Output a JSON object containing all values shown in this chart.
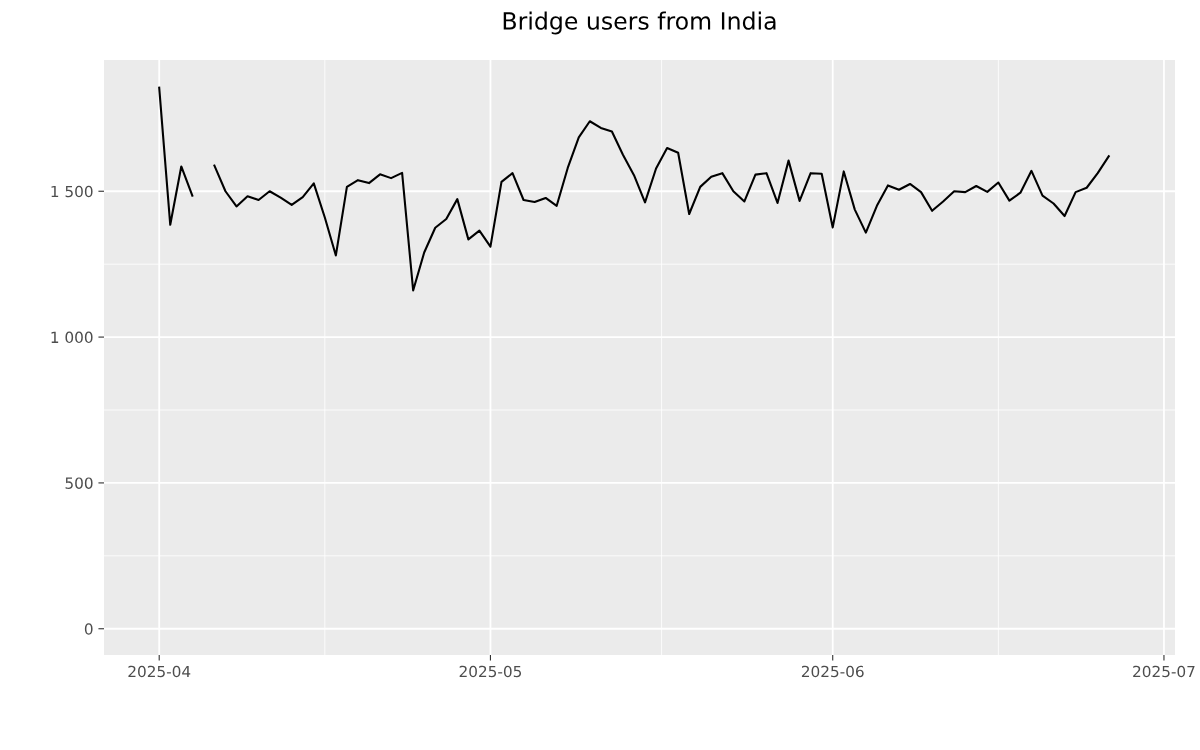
{
  "chart_data": {
    "type": "line",
    "title": "Bridge users from India",
    "x": [
      "2025-04-01",
      "2025-04-02",
      "2025-04-03",
      "2025-04-04",
      "2025-04-05",
      "2025-04-06",
      "2025-04-07",
      "2025-04-08",
      "2025-04-09",
      "2025-04-10",
      "2025-04-11",
      "2025-04-12",
      "2025-04-13",
      "2025-04-14",
      "2025-04-15",
      "2025-04-16",
      "2025-04-17",
      "2025-04-18",
      "2025-04-19",
      "2025-04-20",
      "2025-04-21",
      "2025-04-22",
      "2025-04-23",
      "2025-04-24",
      "2025-04-25",
      "2025-04-26",
      "2025-04-27",
      "2025-04-28",
      "2025-04-29",
      "2025-04-30",
      "2025-05-01",
      "2025-05-02",
      "2025-05-03",
      "2025-05-04",
      "2025-05-05",
      "2025-05-06",
      "2025-05-07",
      "2025-05-08",
      "2025-05-09",
      "2025-05-10",
      "2025-05-11",
      "2025-05-12",
      "2025-05-13",
      "2025-05-14",
      "2025-05-15",
      "2025-05-16",
      "2025-05-17",
      "2025-05-18",
      "2025-05-19",
      "2025-05-20",
      "2025-05-21",
      "2025-05-22",
      "2025-05-23",
      "2025-05-24",
      "2025-05-25",
      "2025-05-26",
      "2025-05-27",
      "2025-05-28",
      "2025-05-29",
      "2025-05-30",
      "2025-05-31",
      "2025-06-01",
      "2025-06-02",
      "2025-06-03",
      "2025-06-04",
      "2025-06-05",
      "2025-06-06",
      "2025-06-07",
      "2025-06-08",
      "2025-06-09",
      "2025-06-10",
      "2025-06-11",
      "2025-06-12",
      "2025-06-13",
      "2025-06-14",
      "2025-06-15",
      "2025-06-16",
      "2025-06-17",
      "2025-06-18",
      "2025-06-19",
      "2025-06-20",
      "2025-06-21",
      "2025-06-22",
      "2025-06-23",
      "2025-06-24",
      "2025-06-25",
      "2025-06-26"
    ],
    "series": [
      {
        "color": "#000000",
        "values": [
          1855,
          1385,
          1585,
          1485,
          null,
          1588,
          1500,
          1448,
          1483,
          1470,
          1500,
          1478,
          1453,
          1480,
          1527,
          1410,
          1280,
          1515,
          1538,
          1528,
          1558,
          1545,
          1563,
          1160,
          1290,
          1375,
          1405,
          1473,
          1335,
          1365,
          1310,
          1532,
          1562,
          1470,
          1463,
          1477,
          1450,
          1580,
          1685,
          1740,
          1717,
          1705,
          1625,
          1555,
          1462,
          1578,
          1648,
          1632,
          1422,
          1515,
          1550,
          1562,
          1500,
          1465,
          1557,
          1562,
          1460,
          1605,
          1467,
          1562,
          1560,
          1376,
          1568,
          1437,
          1358,
          1450,
          1520,
          1505,
          1525,
          1497,
          1433,
          1465,
          1500,
          1497,
          1518,
          1498,
          1530,
          1468,
          1495,
          1570,
          1485,
          1458,
          1415,
          1497,
          1512,
          1562,
          1620
        ]
      }
    ],
    "xlim": [
      "2025-03-27",
      "2025-07-02"
    ],
    "xticks": [
      {
        "value": "2025-04-01",
        "label": "2025-04"
      },
      {
        "value": "2025-05-01",
        "label": "2025-05"
      },
      {
        "value": "2025-06-01",
        "label": "2025-06"
      },
      {
        "value": "2025-07-01",
        "label": "2025-07"
      }
    ],
    "ylim": [
      -90,
      1950
    ],
    "yticks": [
      {
        "value": 0,
        "label": "0"
      },
      {
        "value": 500,
        "label": "500"
      },
      {
        "value": 1000,
        "label": "1 000"
      },
      {
        "value": 1500,
        "label": "1 500"
      }
    ],
    "grid": true,
    "legend": false,
    "marker": "none",
    "line_style": "solid"
  }
}
